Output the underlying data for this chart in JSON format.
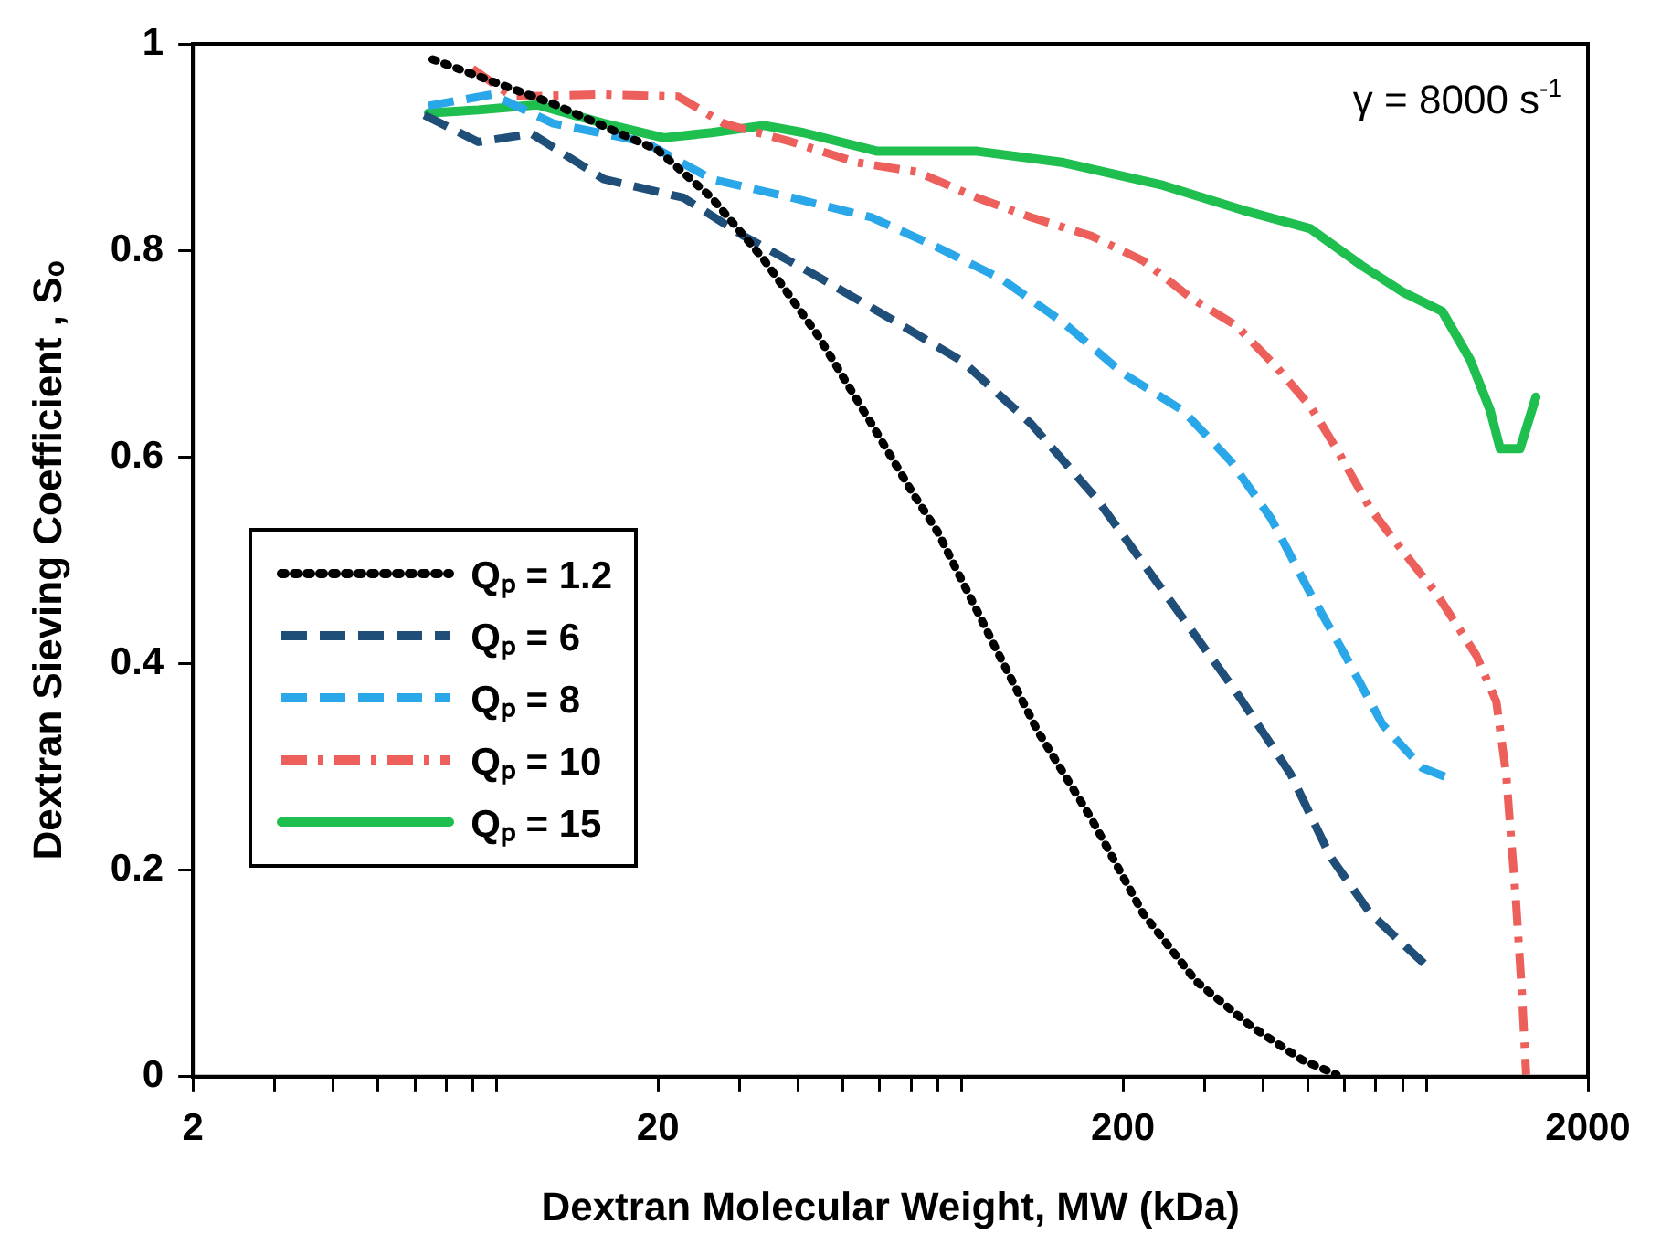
{
  "chart_data": {
    "type": "line",
    "xlabel": "Dextran Molecular Weight, MW (kDa)",
    "ylabel": "Dextran Sieving Coefficient , Sₒ",
    "log": "x",
    "xlim": [
      2,
      2000
    ],
    "ylim": [
      0,
      1
    ],
    "xticks": [
      2,
      {
        "value": 3,
        "label": null
      },
      {
        "value": 4,
        "label": null
      },
      {
        "value": 5,
        "label": null
      },
      {
        "value": 6,
        "label": null
      },
      {
        "value": 7,
        "label": null
      },
      {
        "value": 8,
        "label": null
      },
      {
        "value": 9,
        "label": null
      },
      20,
      {
        "value": 30,
        "label": null
      },
      {
        "value": 40,
        "label": null
      },
      {
        "value": 50,
        "label": null
      },
      {
        "value": 60,
        "label": null
      },
      {
        "value": 70,
        "label": null
      },
      {
        "value": 80,
        "label": null
      },
      {
        "value": 90,
        "label": null
      },
      200,
      {
        "value": 300,
        "label": null
      },
      {
        "value": 400,
        "label": null
      },
      {
        "value": 500,
        "label": null
      },
      {
        "value": 600,
        "label": null
      },
      {
        "value": 700,
        "label": null
      },
      {
        "value": 800,
        "label": null
      },
      {
        "value": 900,
        "label": null
      },
      2000
    ],
    "yticks": [
      0,
      0.2,
      0.4,
      0.6,
      0.8,
      1
    ],
    "grid": false,
    "legend": "bottom left",
    "marker": "none",
    "annotations": [
      {
        "text": "γ = 8000 s$^{-1}$"
      }
    ],
    "series": [
      {
        "name": "Qₚ = 1.2",
        "color": "#000000",
        "line_style": "dotted",
        "x": [
          6.55,
          11.9,
          20,
          26.1,
          33.8,
          44.1,
          57.6,
          70.2,
          79.8,
          107,
          131,
          171,
          221,
          288,
          377,
          487,
          576
        ],
        "values": [
          0.985,
          0.942,
          0.897,
          0.851,
          0.791,
          0.718,
          0.632,
          0.567,
          0.528,
          0.413,
          0.335,
          0.25,
          0.158,
          0.092,
          0.049,
          0.016,
          0.002
        ]
      },
      {
        "name": "Qₚ = 6",
        "color": "#1f4e79",
        "line_style": "dashed",
        "x": [
          6.29,
          8.22,
          10.7,
          15.3,
          22.7,
          30.6,
          42.8,
          65.5,
          90.7,
          127,
          176,
          269,
          351,
          459,
          559,
          681,
          916
        ],
        "values": [
          0.931,
          0.905,
          0.913,
          0.869,
          0.851,
          0.814,
          0.778,
          0.73,
          0.692,
          0.632,
          0.559,
          0.444,
          0.372,
          0.293,
          0.213,
          0.158,
          0.104
        ]
      },
      {
        "name": "Qₚ = 8",
        "color": "#2aa7e8",
        "line_style": "dashed",
        "x": [
          6.42,
          8.8,
          11.9,
          18.7,
          26.1,
          38.8,
          57.6,
          79.8,
          110,
          149,
          200,
          269,
          341,
          416,
          506,
          593,
          723,
          881,
          991
        ],
        "values": [
          0.94,
          0.951,
          0.923,
          0.905,
          0.869,
          0.851,
          0.832,
          0.803,
          0.772,
          0.73,
          0.681,
          0.645,
          0.596,
          0.541,
          0.468,
          0.413,
          0.341,
          0.299,
          0.29
        ]
      },
      {
        "name": "Qₚ = 10",
        "color": "#ec5f5a",
        "line_style": "dashdot",
        "x": [
          7.98,
          9.72,
          15.3,
          22.1,
          27.7,
          38.8,
          53.7,
          72.3,
          97.2,
          127,
          171,
          221,
          280,
          351,
          428,
          506,
          576,
          681,
          774,
          944,
          1151,
          1271,
          1334,
          1400,
          1443,
          1473
        ],
        "values": [
          0.976,
          0.949,
          0.951,
          0.949,
          0.923,
          0.905,
          0.885,
          0.876,
          0.851,
          0.832,
          0.814,
          0.79,
          0.754,
          0.727,
          0.687,
          0.649,
          0.608,
          0.55,
          0.517,
          0.468,
          0.408,
          0.363,
          0.293,
          0.171,
          0.08,
          0.002
        ]
      },
      {
        "name": "Qₚ = 15",
        "color": "#1fbf4f",
        "line_style": "solid",
        "x": [
          6.42,
          8.22,
          11,
          15.3,
          20.6,
          26.1,
          33.8,
          41.1,
          59.3,
          97.2,
          149,
          244,
          362,
          506,
          654,
          798,
          972,
          1117,
          1233,
          1295,
          1429,
          1546
        ],
        "values": [
          0.933,
          0.936,
          0.941,
          0.923,
          0.909,
          0.914,
          0.921,
          0.914,
          0.896,
          0.896,
          0.885,
          0.863,
          0.839,
          0.821,
          0.785,
          0.76,
          0.741,
          0.694,
          0.645,
          0.608,
          0.608,
          0.658
        ]
      }
    ]
  }
}
